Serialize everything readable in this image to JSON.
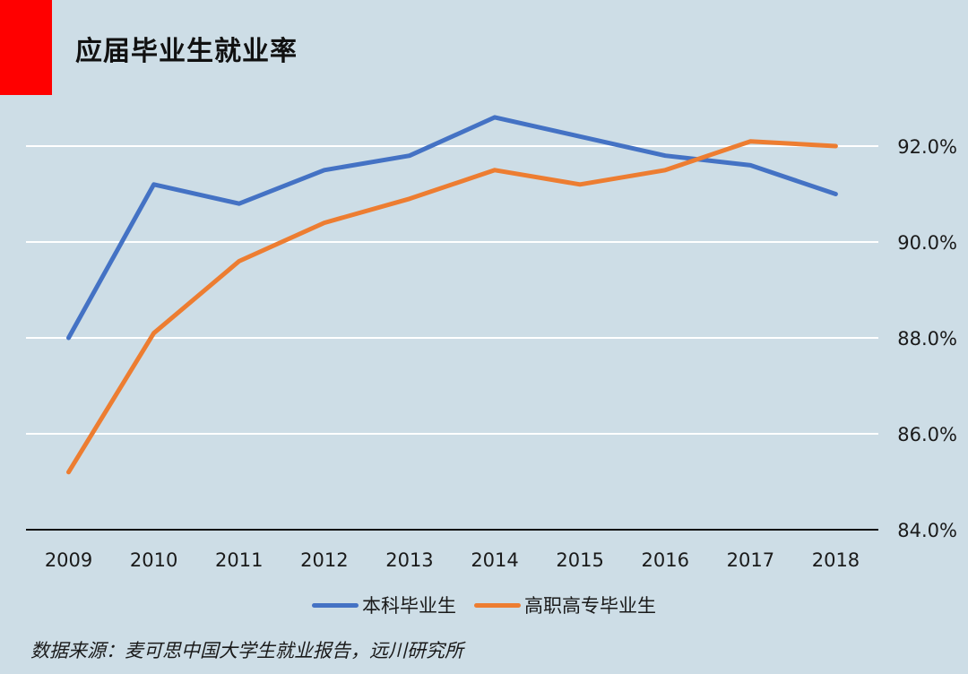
{
  "title": "应届毕业生就业率",
  "source": "数据来源：麦可思中国大学生就业报告，远川研究所",
  "colors": {
    "accent": "#ff0000",
    "bachelor": "#4472c4",
    "vocational": "#ed7d31",
    "background": "#cddde6"
  },
  "chart_data": {
    "type": "line",
    "title": "应届毕业生就业率",
    "xlabel": "",
    "ylabel": "",
    "categories": [
      "2009",
      "2010",
      "2011",
      "2012",
      "2013",
      "2014",
      "2015",
      "2016",
      "2017",
      "2018"
    ],
    "series": [
      {
        "name": "本科毕业生",
        "values": [
          88.0,
          91.2,
          90.8,
          91.5,
          91.8,
          92.6,
          92.2,
          91.8,
          91.6,
          91.0
        ]
      },
      {
        "name": "高职高专毕业生",
        "values": [
          85.2,
          88.1,
          89.6,
          90.4,
          90.9,
          91.5,
          91.2,
          91.5,
          92.1,
          92.0
        ]
      }
    ],
    "ylim": [
      84.0,
      93.5
    ],
    "yticks": [
      84.0,
      86.0,
      88.0,
      90.0,
      92.0
    ],
    "ytick_labels": [
      "84.0%",
      "86.0%",
      "88.0%",
      "90.0%",
      "92.0%"
    ],
    "y_axis_side": "right",
    "grid": true,
    "legend_position": "bottom"
  }
}
